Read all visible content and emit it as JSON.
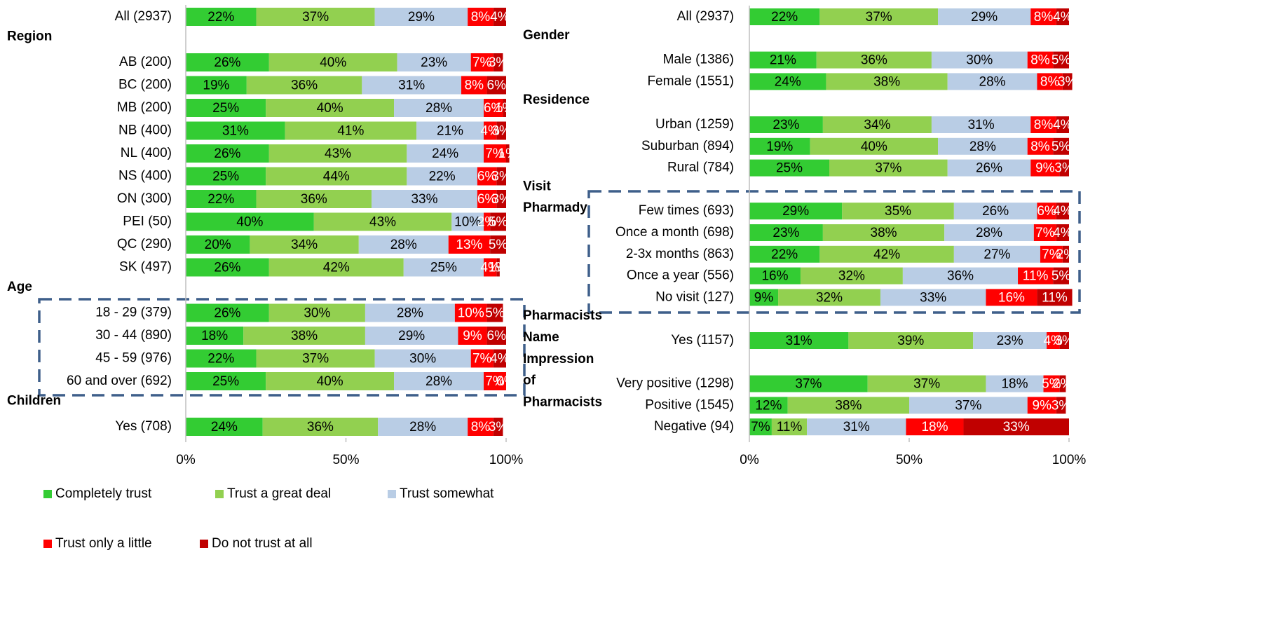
{
  "chart_data": [
    {
      "type": "bar",
      "orientation": "horizontal",
      "stacked": true,
      "categories": [
        "All (2937)",
        null,
        "AB (200)",
        "BC (200)",
        "MB (200)",
        "NB (400)",
        "NL (400)",
        "NS (400)",
        "ON (300)",
        "PEI (50)",
        "QC (290)",
        "SK (497)",
        null,
        "18 - 29 (379)",
        "30 - 44 (890)",
        "45 - 59 (976)",
        "60 and over (692)",
        null,
        "Yes (708)"
      ],
      "headings": [
        null,
        "Region",
        null,
        null,
        null,
        null,
        null,
        null,
        null,
        null,
        null,
        null,
        "Age",
        null,
        null,
        null,
        null,
        "Children",
        null
      ],
      "xlim": [
        0,
        100
      ],
      "xticks": [
        {
          "value": 0,
          "label": "0%"
        },
        {
          "value": 50,
          "label": "50%"
        },
        {
          "value": 100,
          "label": "100%"
        }
      ],
      "series": [
        {
          "name": "Completely trust",
          "color": "#33cc33",
          "label_color": "#000000",
          "values": [
            22,
            null,
            26,
            19,
            25,
            31,
            26,
            25,
            22,
            40,
            20,
            26,
            null,
            26,
            18,
            22,
            25,
            null,
            24
          ],
          "value_labels": [
            "22%",
            null,
            "26%",
            "19%",
            "25%",
            "31%",
            "26%",
            "25%",
            "22%",
            "40%",
            "20%",
            "26%",
            null,
            "26%",
            "18%",
            "22%",
            "25%",
            null,
            "24%"
          ]
        },
        {
          "name": "Trust a great deal",
          "color": "#92d050",
          "label_color": "#000000",
          "values": [
            37,
            null,
            40,
            36,
            40,
            41,
            43,
            44,
            36,
            43,
            34,
            42,
            null,
            30,
            38,
            37,
            40,
            null,
            36
          ],
          "value_labels": [
            "37%",
            null,
            "40%",
            "36%",
            "40%",
            "41%",
            "43%",
            "44%",
            "36%",
            "43%",
            "34%",
            "42%",
            null,
            "30%",
            "38%",
            "37%",
            "40%",
            null,
            "36%"
          ]
        },
        {
          "name": "Trust somewhat",
          "color": "#b9cde5",
          "label_color": "#000000",
          "values": [
            29,
            null,
            23,
            31,
            28,
            21,
            24,
            22,
            33,
            10,
            28,
            25,
            null,
            28,
            29,
            30,
            28,
            null,
            28
          ],
          "value_labels": [
            "29%",
            null,
            "23%",
            "31%",
            "28%",
            "21%",
            "24%",
            "22%",
            "33%",
            "10%",
            "28%",
            "25%",
            null,
            "28%",
            "29%",
            "30%",
            "28%",
            null,
            "28%"
          ]
        },
        {
          "name": "Trust only a little",
          "color": "#ff0000",
          "label_color": "#ffffff",
          "values": [
            8,
            null,
            7,
            8,
            6,
            4,
            7,
            6,
            6,
            2,
            13,
            4,
            null,
            10,
            9,
            7,
            7,
            null,
            8
          ],
          "value_labels": [
            "8%",
            null,
            "7%",
            "8%",
            "6%",
            "4%",
            "7%",
            "6%",
            "6%",
            "2%",
            "13%",
            "4%",
            null,
            "10%",
            "9%",
            "7%",
            "7%",
            null,
            "8%"
          ]
        },
        {
          "name": "Do not trust at all",
          "color": "#c00000",
          "label_color": "#ffffff",
          "values": [
            4,
            null,
            3,
            6,
            1,
            3,
            1,
            3,
            3,
            5,
            5,
            1,
            null,
            5,
            6,
            4,
            0,
            null,
            3
          ],
          "value_labels": [
            "4%",
            null,
            "3%",
            "6%",
            "1%",
            "3%",
            "1%",
            "3%",
            "3%",
            "5%",
            "5%",
            "1%",
            null,
            "5%",
            "6%",
            "4%",
            "0%",
            null,
            "3%"
          ]
        }
      ]
    },
    {
      "type": "bar",
      "orientation": "horizontal",
      "stacked": true,
      "categories": [
        "All (2937)",
        null,
        "Male (1386)",
        "Female (1551)",
        null,
        "Urban (1259)",
        "Suburban (894)",
        "Rural (784)",
        null,
        "Few times (693)",
        "Once a month (698)",
        "2-3x months (863)",
        "Once a year (556)",
        "No visit (127)",
        null,
        "Yes (1157)",
        null,
        "Very positive (1298)",
        "Positive (1545)",
        "Negative (94)"
      ],
      "headings": [
        null,
        "Gender",
        null,
        null,
        "Residence",
        null,
        null,
        null,
        "Visit",
        "Pharmady",
        null,
        null,
        null,
        null,
        "Pharmacists",
        "Name",
        "Impression",
        "of",
        "Pharmacists",
        null
      ],
      "xlim": [
        0,
        100
      ],
      "xticks": [
        {
          "value": 0,
          "label": "0%"
        },
        {
          "value": 50,
          "label": "50%"
        },
        {
          "value": 100,
          "label": "100%"
        }
      ],
      "series": [
        {
          "name": "Completely trust",
          "color": "#33cc33",
          "label_color": "#000000",
          "values": [
            22,
            null,
            21,
            24,
            null,
            23,
            19,
            25,
            null,
            29,
            23,
            22,
            16,
            9,
            null,
            31,
            null,
            37,
            12,
            7
          ],
          "value_labels": [
            "22%",
            null,
            "21%",
            "24%",
            null,
            "23%",
            "19%",
            "25%",
            null,
            "29%",
            "23%",
            "22%",
            "16%",
            "9%",
            null,
            "31%",
            null,
            "37%",
            "12%",
            "7%"
          ]
        },
        {
          "name": "Trust a great deal",
          "color": "#92d050",
          "label_color": "#000000",
          "values": [
            37,
            null,
            36,
            38,
            null,
            34,
            40,
            37,
            null,
            35,
            38,
            42,
            32,
            32,
            null,
            39,
            null,
            37,
            38,
            11
          ],
          "value_labels": [
            "37%",
            null,
            "36%",
            "38%",
            null,
            "34%",
            "40%",
            "37%",
            null,
            "35%",
            "38%",
            "42%",
            "32%",
            "32%",
            null,
            "39%",
            null,
            "37%",
            "38%",
            "11%"
          ]
        },
        {
          "name": "Trust somewhat",
          "color": "#b9cde5",
          "label_color": "#000000",
          "values": [
            29,
            null,
            30,
            28,
            null,
            31,
            28,
            26,
            null,
            26,
            28,
            27,
            36,
            33,
            null,
            23,
            null,
            18,
            37,
            31
          ],
          "value_labels": [
            "29%",
            null,
            "30%",
            "28%",
            null,
            "31%",
            "28%",
            "26%",
            null,
            "26%",
            "28%",
            "27%",
            "36%",
            "33%",
            null,
            "23%",
            null,
            "18%",
            "37%",
            "31%"
          ]
        },
        {
          "name": "Trust only a little",
          "color": "#ff0000",
          "label_color": "#ffffff",
          "values": [
            8,
            null,
            8,
            8,
            null,
            8,
            8,
            9,
            null,
            6,
            7,
            7,
            11,
            16,
            null,
            4,
            null,
            5,
            9,
            18
          ],
          "value_labels": [
            "8%",
            null,
            "8%",
            "8%",
            null,
            "8%",
            "8%",
            "9%",
            null,
            "6%",
            "7%",
            "7%",
            "11%",
            "16%",
            null,
            "4%",
            null,
            "5%",
            "9%",
            "18%"
          ]
        },
        {
          "name": "Do not trust at all",
          "color": "#c00000",
          "label_color": "#ffffff",
          "values": [
            4,
            null,
            5,
            3,
            null,
            4,
            5,
            3,
            null,
            4,
            4,
            2,
            5,
            11,
            null,
            3,
            null,
            2,
            3,
            33
          ],
          "value_labels": [
            "4%",
            null,
            "5%",
            "3%",
            null,
            "4%",
            "5%",
            "3%",
            null,
            "4%",
            "4%",
            "2%",
            "5%",
            "11%",
            null,
            "3%",
            null,
            "2%",
            "3%",
            "33%"
          ]
        }
      ]
    }
  ]
}
